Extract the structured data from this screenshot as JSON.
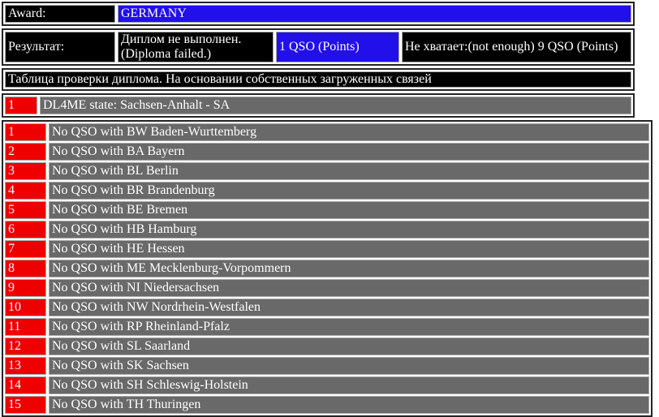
{
  "colors": {
    "blue": "#2110ea",
    "red": "#ee0000",
    "gray": "#696969",
    "black": "#000000"
  },
  "award": {
    "label": "Award:",
    "value": "GERMANY"
  },
  "result": {
    "label": "Результат:",
    "status_line1": "Диплом не выполнен.",
    "status_line2": "(Diploma failed.)",
    "points": "1 QSO (Points)",
    "missing": "Не хватает:(not enough) 9 QSO (Points)"
  },
  "check_table": {
    "title": "Таблица проверки диплома. На основании собственных загруженных связей",
    "summary": {
      "num": "1",
      "text": "DL4ME state: Sachsen-Anhalt - SA"
    }
  },
  "missing_rows": [
    {
      "num": "1",
      "text": "No QSO with BW Baden-Wurttemberg"
    },
    {
      "num": "2",
      "text": "No QSO with BA Bayern"
    },
    {
      "num": "3",
      "text": "No QSO with BL Berlin"
    },
    {
      "num": "4",
      "text": "No QSO with BR Brandenburg"
    },
    {
      "num": "5",
      "text": "No QSO with BE Bremen"
    },
    {
      "num": "6",
      "text": "No QSO with HB Hamburg"
    },
    {
      "num": "7",
      "text": "No QSO with HE Hessen"
    },
    {
      "num": "8",
      "text": "No QSO with ME Mecklenburg-Vorpommern"
    },
    {
      "num": "9",
      "text": "No QSO with NI Niedersachsen"
    },
    {
      "num": "10",
      "text": "No QSO with NW Nordrhein-Westfalen"
    },
    {
      "num": "11",
      "text": "No QSO with RP Rheinland-Pfalz"
    },
    {
      "num": "12",
      "text": "No QSO with SL Saarland"
    },
    {
      "num": "13",
      "text": "No QSO with SK Sachsen"
    },
    {
      "num": "14",
      "text": "No QSO with SH Schleswig-Holstein"
    },
    {
      "num": "15",
      "text": "No QSO with TH Thuringen"
    }
  ]
}
